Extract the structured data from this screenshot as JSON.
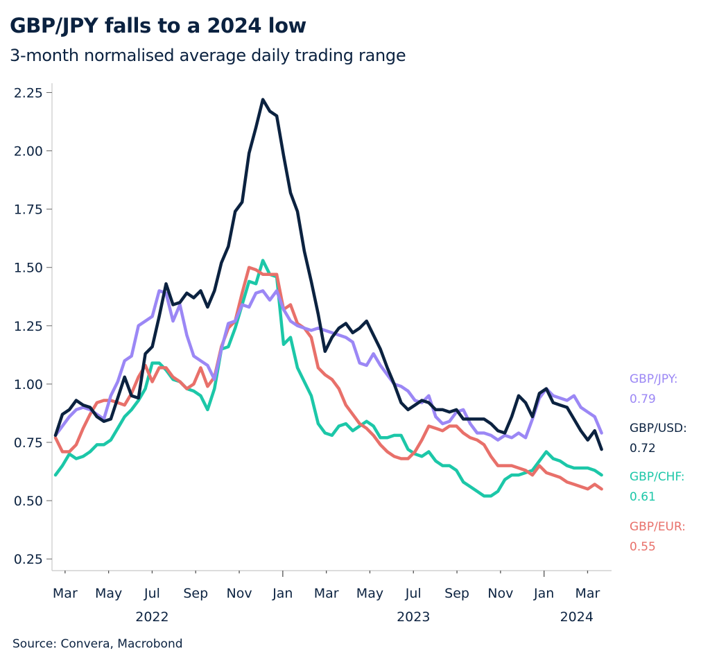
{
  "header": {
    "title": "GBP/JPY falls to a 2024 low",
    "subtitle": "3-month normalised average daily trading range"
  },
  "footer": {
    "source": "Source: Convera, Macrobond"
  },
  "chart_data": {
    "type": "line",
    "title": "GBP/JPY falls to a 2024 low",
    "subtitle": "3-month normalised average daily trading range",
    "xlabel": "",
    "ylabel": "",
    "x_unit": "months since Jan 2022 (0 = 1 Jan 2022)",
    "x_start": 1.56,
    "x_step": 0.3175,
    "xlim": [
      1.4,
      27.1
    ],
    "ylim": [
      0.2,
      2.29
    ],
    "grid": false,
    "y_ticks": [
      0.25,
      0.5,
      0.75,
      1.0,
      1.25,
      1.5,
      1.75,
      2.0,
      2.25
    ],
    "y_tick_labels": [
      "0.25",
      "0.50",
      "0.75",
      "1.00",
      "1.25",
      "1.50",
      "1.75",
      "2.00",
      "2.25"
    ],
    "x_ticks": [
      {
        "m": 2,
        "label": "Mar",
        "major": false
      },
      {
        "m": 4,
        "label": "May",
        "major": false
      },
      {
        "m": 6,
        "label": "Jul",
        "major": false
      },
      {
        "m": 8,
        "label": "Sep",
        "major": false
      },
      {
        "m": 10,
        "label": "Nov",
        "major": false
      },
      {
        "m": 12,
        "label": "Jan",
        "major": true
      },
      {
        "m": 14,
        "label": "Mar",
        "major": false
      },
      {
        "m": 16,
        "label": "May",
        "major": false
      },
      {
        "m": 18,
        "label": "Jul",
        "major": false
      },
      {
        "m": 20,
        "label": "Sep",
        "major": false
      },
      {
        "m": 22,
        "label": "Nov",
        "major": false
      },
      {
        "m": 24,
        "label": "Jan",
        "major": true
      },
      {
        "m": 26,
        "label": "Mar",
        "major": false
      }
    ],
    "year_labels": [
      {
        "m": 6,
        "label": "2022"
      },
      {
        "m": 18,
        "label": "2023"
      },
      {
        "m": 25.5,
        "label": "2024"
      }
    ],
    "legend_position": "right",
    "series": [
      {
        "name": "GBP/JPY",
        "color": "#9b87f5",
        "end_label": "GBP/JPY:",
        "end_value": "0.79",
        "values": [
          0.78,
          0.82,
          0.86,
          0.89,
          0.9,
          0.89,
          0.87,
          0.85,
          0.95,
          1.01,
          1.1,
          1.12,
          1.25,
          1.27,
          1.29,
          1.4,
          1.39,
          1.27,
          1.34,
          1.21,
          1.12,
          1.1,
          1.08,
          1.02,
          1.15,
          1.26,
          1.27,
          1.34,
          1.33,
          1.39,
          1.4,
          1.36,
          1.4,
          1.32,
          1.27,
          1.25,
          1.24,
          1.23,
          1.24,
          1.23,
          1.22,
          1.21,
          1.2,
          1.18,
          1.09,
          1.08,
          1.13,
          1.08,
          1.04,
          1.0,
          0.99,
          0.97,
          0.93,
          0.92,
          0.95,
          0.86,
          0.83,
          0.84,
          0.88,
          0.89,
          0.83,
          0.79,
          0.79,
          0.78,
          0.76,
          0.78,
          0.77,
          0.79,
          0.77,
          0.85,
          0.94,
          0.98,
          0.95,
          0.94,
          0.93,
          0.95,
          0.9,
          0.88,
          0.86,
          0.79
        ]
      },
      {
        "name": "GBP/USD",
        "color": "#0b2240",
        "end_label": "GBP/USD:",
        "end_value": "0.72",
        "values": [
          0.78,
          0.87,
          0.89,
          0.93,
          0.91,
          0.9,
          0.86,
          0.84,
          0.85,
          0.94,
          1.03,
          0.95,
          0.94,
          1.13,
          1.16,
          1.29,
          1.43,
          1.34,
          1.35,
          1.39,
          1.37,
          1.4,
          1.33,
          1.4,
          1.52,
          1.59,
          1.74,
          1.78,
          1.99,
          2.1,
          2.22,
          2.17,
          2.15,
          1.98,
          1.82,
          1.74,
          1.57,
          1.44,
          1.3,
          1.14,
          1.2,
          1.24,
          1.26,
          1.22,
          1.24,
          1.27,
          1.21,
          1.15,
          1.07,
          1.0,
          0.92,
          0.89,
          0.91,
          0.93,
          0.92,
          0.89,
          0.89,
          0.88,
          0.89,
          0.85,
          0.85,
          0.85,
          0.85,
          0.83,
          0.8,
          0.79,
          0.86,
          0.95,
          0.92,
          0.86,
          0.96,
          0.98,
          0.92,
          0.91,
          0.9,
          0.85,
          0.8,
          0.76,
          0.8,
          0.72
        ]
      },
      {
        "name": "GBP/CHF",
        "color": "#1cc7a8",
        "end_label": "GBP/CHF:",
        "end_value": "0.61",
        "values": [
          0.61,
          0.65,
          0.7,
          0.68,
          0.69,
          0.71,
          0.74,
          0.74,
          0.76,
          0.81,
          0.86,
          0.89,
          0.93,
          0.98,
          1.09,
          1.09,
          1.06,
          1.02,
          1.01,
          0.98,
          0.97,
          0.95,
          0.89,
          0.98,
          1.15,
          1.16,
          1.24,
          1.34,
          1.44,
          1.43,
          1.53,
          1.47,
          1.46,
          1.17,
          1.2,
          1.07,
          1.01,
          0.95,
          0.83,
          0.79,
          0.78,
          0.82,
          0.83,
          0.8,
          0.82,
          0.84,
          0.82,
          0.77,
          0.77,
          0.78,
          0.78,
          0.72,
          0.7,
          0.69,
          0.71,
          0.67,
          0.65,
          0.65,
          0.63,
          0.58,
          0.56,
          0.54,
          0.52,
          0.52,
          0.54,
          0.59,
          0.61,
          0.61,
          0.62,
          0.63,
          0.67,
          0.71,
          0.68,
          0.67,
          0.65,
          0.64,
          0.64,
          0.64,
          0.63,
          0.61
        ]
      },
      {
        "name": "GBP/EUR",
        "color": "#e8706a",
        "end_label": "GBP/EUR:",
        "end_value": "0.55",
        "values": [
          0.77,
          0.71,
          0.71,
          0.74,
          0.81,
          0.87,
          0.92,
          0.93,
          0.93,
          0.92,
          0.91,
          0.96,
          1.03,
          1.08,
          1.01,
          1.07,
          1.07,
          1.03,
          1.01,
          0.98,
          1.0,
          1.07,
          0.99,
          1.03,
          1.16,
          1.24,
          1.27,
          1.39,
          1.5,
          1.49,
          1.47,
          1.47,
          1.47,
          1.32,
          1.34,
          1.26,
          1.24,
          1.2,
          1.07,
          1.04,
          1.02,
          0.98,
          0.91,
          0.87,
          0.83,
          0.81,
          0.78,
          0.74,
          0.71,
          0.69,
          0.68,
          0.68,
          0.71,
          0.76,
          0.82,
          0.81,
          0.8,
          0.82,
          0.82,
          0.79,
          0.77,
          0.76,
          0.74,
          0.69,
          0.65,
          0.65,
          0.65,
          0.64,
          0.63,
          0.61,
          0.65,
          0.62,
          0.61,
          0.6,
          0.58,
          0.57,
          0.56,
          0.55,
          0.57,
          0.55
        ]
      }
    ]
  }
}
